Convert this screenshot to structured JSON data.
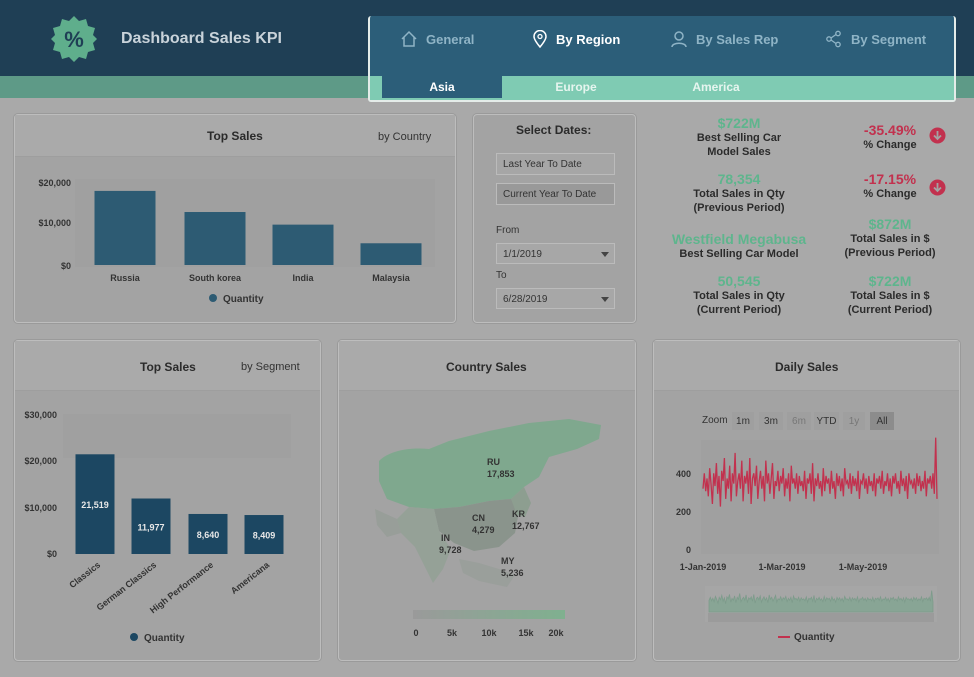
{
  "header": {
    "title": "Dashboard Sales KPI",
    "logo_glyph": "%"
  },
  "nav": {
    "tabs": [
      {
        "label": "General",
        "icon": "home-icon"
      },
      {
        "label": "By Region",
        "icon": "location-pin-icon"
      },
      {
        "label": "By Sales Rep",
        "icon": "user-icon"
      },
      {
        "label": "By Segment",
        "icon": "share-icon"
      }
    ],
    "active_tab": "By Region",
    "subtabs": [
      "Asia",
      "Europe",
      "America"
    ],
    "active_subtab": "Asia"
  },
  "top_sales_country": {
    "title": "Top Sales",
    "subtitle": "by Country",
    "legend": "Quantity",
    "y_ticks": [
      "$20,000",
      "$10,000",
      "$0"
    ]
  },
  "select_dates": {
    "title": "Select Dates:",
    "options": [
      "Last Year To Date",
      "Current Year To Date"
    ],
    "selected_option": "Current Year To Date",
    "from_label": "From",
    "from_value": "1/1/2019",
    "to_label": "To",
    "to_value": "6/28/2019"
  },
  "kpis": {
    "best_car_sales": {
      "value": "$722M",
      "label1": "Best Selling Car",
      "label2": "Model Sales"
    },
    "change1": {
      "value": "-35.49%",
      "label": "% Change"
    },
    "qty_prev": {
      "value": "78,354",
      "label1": "Total Sales in Qty",
      "label2": "(Previous Period)"
    },
    "change2": {
      "value": "-17.15%",
      "label": "% Change"
    },
    "sales_prev": {
      "value": "$872M",
      "label1": "Total Sales in $",
      "label2": "(Previous Period)"
    },
    "best_model": {
      "value": "Westfield Megabusa",
      "label": "Best Selling Car Model"
    },
    "qty_cur": {
      "value": "50,545",
      "label1": "Total Sales in Qty",
      "label2": "(Current Period)"
    },
    "sales_cur": {
      "value": "$722M",
      "label1": "Total Sales in $",
      "label2": "(Current Period)"
    }
  },
  "top_sales_segment": {
    "title": "Top Sales",
    "subtitle": "by Segment",
    "legend": "Quantity",
    "y_ticks": [
      "$30,000",
      "$20,000",
      "$10,000",
      "$0"
    ]
  },
  "country_sales": {
    "title": "Country Sales",
    "labels": [
      {
        "code": "RU",
        "value": "17,853"
      },
      {
        "code": "CN",
        "value": "4,279"
      },
      {
        "code": "KR",
        "value": "12,767"
      },
      {
        "code": "IN",
        "value": "9,728"
      },
      {
        "code": "MY",
        "value": "5,236"
      }
    ],
    "scale_ticks": [
      "0",
      "5k",
      "10k",
      "15k",
      "20k"
    ]
  },
  "daily_sales": {
    "title": "Daily Sales",
    "zoom_label": "Zoom",
    "zoom_buttons": [
      "1m",
      "3m",
      "6m",
      "YTD",
      "1y",
      "All"
    ],
    "active_zoom": "All",
    "y_ticks": [
      "400",
      "200",
      "0"
    ],
    "x_ticks": [
      "1-Jan-2019",
      "1-Mar-2019",
      "1-May-2019"
    ],
    "legend": "Quantity"
  },
  "colors": {
    "bar": "#2d5b73",
    "bar_dark": "#1c4762",
    "kpi_value": "#5eb58d",
    "negative": "#c2314e",
    "line": "#c2314e"
  },
  "chart_data": [
    {
      "type": "bar",
      "title": "Top Sales",
      "subtitle": "by Country",
      "categories": [
        "Russia",
        "South korea",
        "India",
        "Malaysia"
      ],
      "series": [
        {
          "name": "Quantity",
          "values": [
            17853,
            12767,
            9728,
            5236
          ]
        }
      ],
      "ylim": [
        0,
        20000
      ],
      "legend": "bottom"
    },
    {
      "type": "bar",
      "title": "Top Sales",
      "subtitle": "by Segment",
      "categories": [
        "Classics",
        "German Classics",
        "High Performance",
        "Americana"
      ],
      "series": [
        {
          "name": "Quantity",
          "values": [
            21519,
            11977,
            8640,
            8409
          ]
        }
      ],
      "data_labels": [
        "21,519",
        "11,977",
        "8,640",
        "8,409"
      ],
      "ylim": [
        0,
        30000
      ],
      "legend": "bottom"
    },
    {
      "type": "line",
      "title": "Daily Sales",
      "x_start": "1-Jan-2019",
      "x_end": "28-Jun-2019",
      "series": [
        {
          "name": "Quantity",
          "values": [
            240,
            300,
            230,
            280,
            210,
            320,
            260,
            180,
            300,
            250,
            340,
            220,
            290,
            170,
            310,
            270,
            360,
            200,
            280,
            240,
            330,
            190,
            300,
            260,
            380,
            210,
            270,
            300,
            240,
            350,
            190,
            290,
            260,
            310,
            220,
            360,
            180,
            280,
            300,
            250,
            330,
            200,
            270,
            310,
            240,
            290,
            190,
            350,
            260,
            300,
            220,
            280,
            340,
            200,
            270,
            250,
            310,
            230,
            290,
            260,
            320,
            210,
            280,
            240,
            300,
            190,
            330,
            260,
            280,
            240,
            300,
            220,
            290,
            250,
            270,
            230,
            310,
            200,
            280,
            260,
            300,
            220,
            340,
            190,
            280,
            250,
            300,
            240,
            270,
            210,
            320,
            230,
            290,
            260,
            280,
            220,
            310,
            240,
            270,
            200,
            300,
            250,
            290,
            230,
            280,
            210,
            320,
            260,
            270,
            240,
            300,
            220,
            290,
            250,
            280,
            230,
            310,
            200,
            270,
            260,
            300,
            240,
            280,
            220,
            290,
            250,
            270,
            230,
            300,
            210,
            280,
            260,
            290,
            240,
            310,
            220,
            270,
            250,
            300,
            230,
            280,
            210,
            290,
            260,
            300,
            240,
            270,
            220,
            310,
            250,
            280,
            230,
            290,
            200,
            300,
            260,
            270,
            240,
            280,
            220,
            300,
            250,
            290,
            230,
            270,
            240,
            310,
            210,
            280,
            260,
            290,
            240,
            300,
            220,
            440,
            200
          ]
        }
      ],
      "ylim": [
        0,
        450
      ]
    }
  ]
}
